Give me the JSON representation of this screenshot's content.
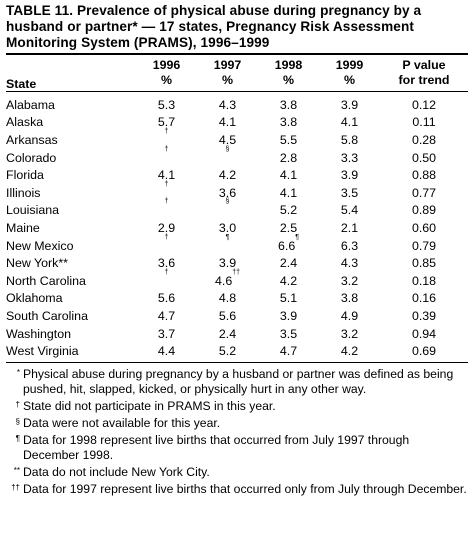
{
  "title": "TABLE 11. Prevalence of physical abuse during pregnancy by a husband or partner* — 17 states, Pregnancy Risk Assessment Monitoring System (PRAMS), 1996–1999",
  "columns": {
    "state": "State",
    "y1996": [
      "1996",
      "%"
    ],
    "y1997": [
      "1997",
      "%"
    ],
    "y1998": [
      "1998",
      "%"
    ],
    "y1999": [
      "1999",
      "%"
    ],
    "ptrend": [
      "P value",
      "for trend"
    ]
  },
  "rows": [
    {
      "state": "Alabama",
      "v1996": "5.3",
      "v1997": "4.3",
      "v1998": "3.8",
      "v1999": "3.9",
      "p": "0.12"
    },
    {
      "state": "Alaska",
      "v1996": "5.7",
      "v1997": "4.1",
      "v1998": "3.8",
      "v1999": "4.1",
      "p": "0.11"
    },
    {
      "state": "Arkansas",
      "v1996": "",
      "m1996": "†",
      "v1997": "4.5",
      "v1998": "5.5",
      "v1999": "5.8",
      "p": "0.28"
    },
    {
      "state": "Colorado",
      "v1996": "",
      "m1996": "†",
      "v1997": "",
      "m1997": "§",
      "v1998": "2.8",
      "v1999": "3.3",
      "p": "0.50"
    },
    {
      "state": "Florida",
      "v1996": "4.1",
      "v1997": "4.2",
      "v1998": "4.1",
      "v1999": "3.9",
      "p": "0.88"
    },
    {
      "state": "Illinois",
      "v1996": "",
      "m1996": "†",
      "v1997": "3.6",
      "v1998": "4.1",
      "v1999": "3.5",
      "p": "0.77"
    },
    {
      "state": "Louisiana",
      "v1996": "",
      "m1996": "†",
      "v1997": "",
      "m1997": "§",
      "v1998": "5.2",
      "v1999": "5.4",
      "p": "0.89"
    },
    {
      "state": "Maine",
      "v1996": "2.9",
      "v1997": "3.0",
      "v1998": "2.5",
      "v1999": "2.1",
      "p": "0.60"
    },
    {
      "state": "New Mexico",
      "v1996": "",
      "m1996": "†",
      "v1997": "",
      "m1997": "¶",
      "v1998": "6.6",
      "m1998": "¶",
      "v1999": "6.3",
      "p": "0.79"
    },
    {
      "state": "New York**",
      "v1996": "3.6",
      "v1997": "3.9",
      "v1998": "2.4",
      "v1999": "4.3",
      "p": "0.85"
    },
    {
      "state": "North Carolina",
      "v1996": "",
      "m1996": "†",
      "v1997": "4.6",
      "m1997": "††",
      "v1998": "4.2",
      "v1999": "3.2",
      "p": "0.18"
    },
    {
      "state": "Oklahoma",
      "v1996": "5.6",
      "v1997": "4.8",
      "v1998": "5.1",
      "v1999": "3.8",
      "p": "0.16"
    },
    {
      "state": "South Carolina",
      "v1996": "4.7",
      "v1997": "5.6",
      "v1998": "3.9",
      "v1999": "4.9",
      "p": "0.39"
    },
    {
      "state": "Washington",
      "v1996": "3.7",
      "v1997": "2.4",
      "v1998": "3.5",
      "v1999": "3.2",
      "p": "0.94"
    },
    {
      "state": "West Virginia",
      "v1996": "4.4",
      "v1997": "5.2",
      "v1998": "4.7",
      "v1999": "4.2",
      "p": "0.69"
    }
  ],
  "footnotes": [
    {
      "mark": "*",
      "text": "Physical abuse during pregnancy by a husband or partner was defined as being pushed, hit, slapped, kicked, or physically hurt in any other way."
    },
    {
      "mark": "†",
      "text": "State did not participate in PRAMS in this year."
    },
    {
      "mark": "§",
      "text": "Data were not available for this year."
    },
    {
      "mark": "¶",
      "text": "Data for 1998 represent live births that occurred from July 1997 through December 1998."
    },
    {
      "mark": "**",
      "text": "Data do not include New York City."
    },
    {
      "mark": "††",
      "text": "Data for 1997 represent live births that occurred only from July through December."
    }
  ]
}
